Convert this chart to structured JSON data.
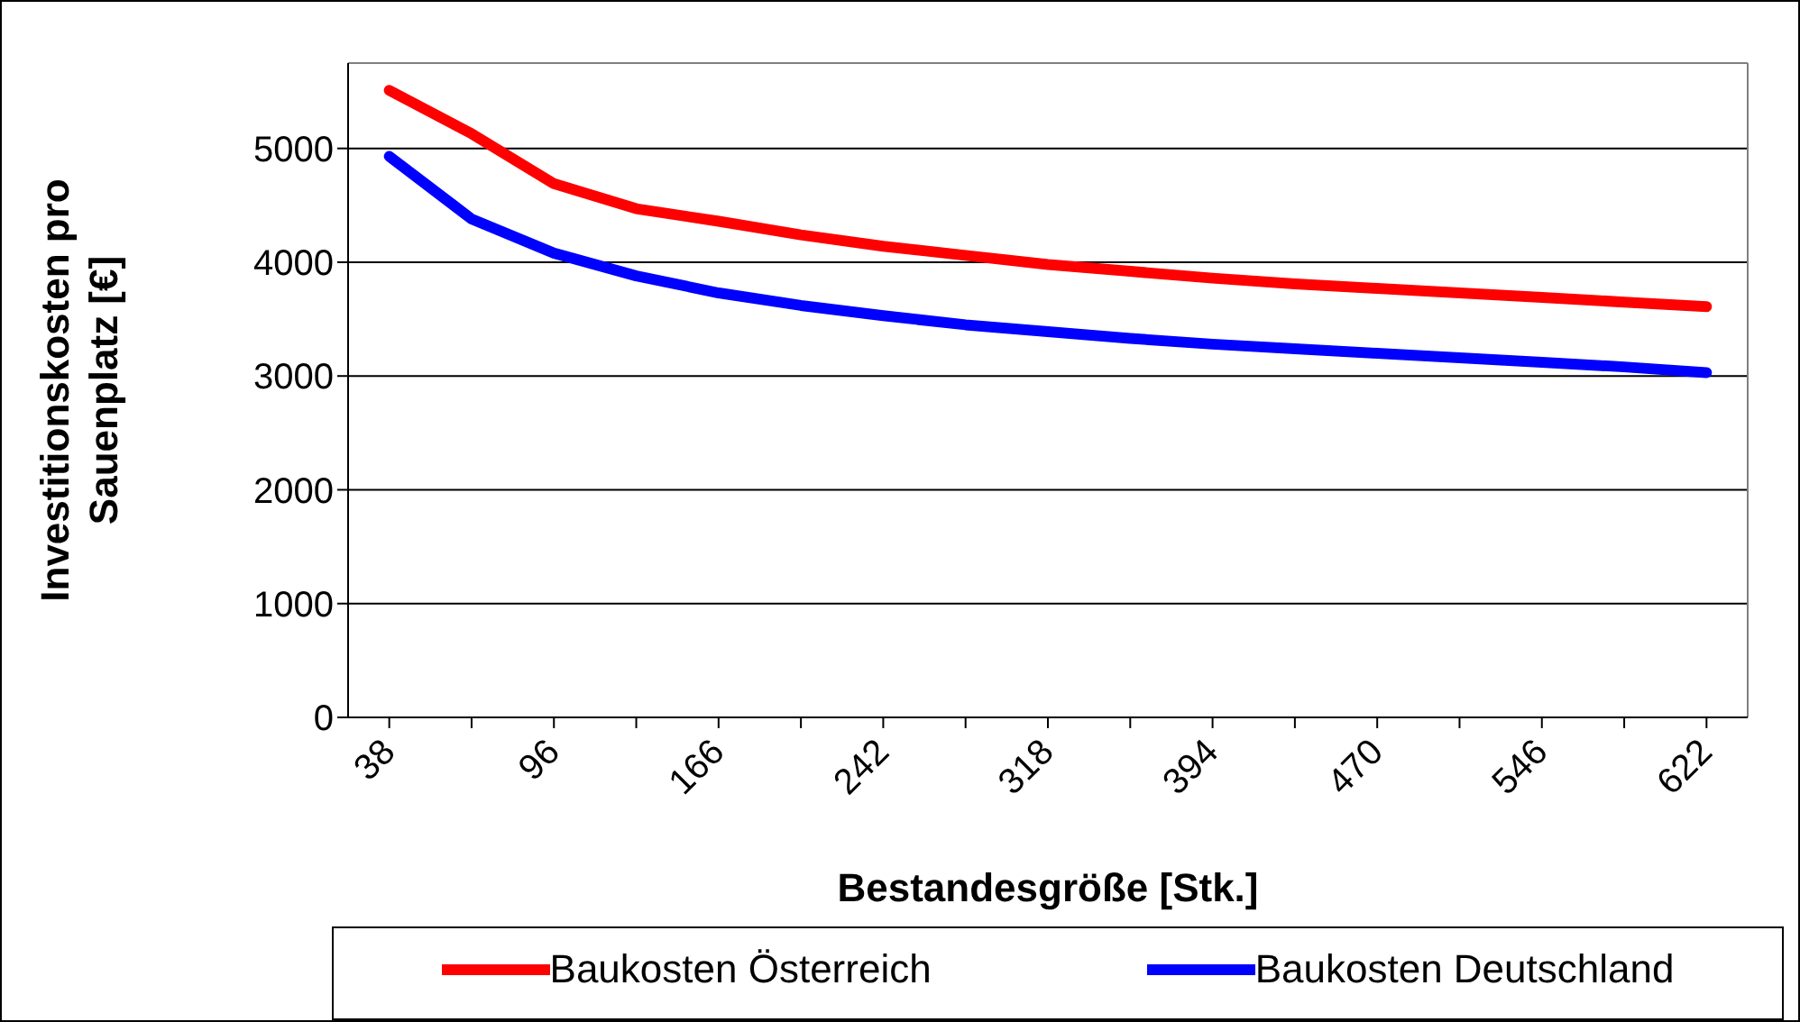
{
  "chart_data": {
    "type": "line",
    "xlabel": "Bestandesgröße [Stk.]",
    "ylabel": "Investitionskosten pro Sauenplatz [€]",
    "categories": [
      "38",
      null,
      "96",
      null,
      "166",
      null,
      "242",
      null,
      "318",
      null,
      "394",
      null,
      "470",
      null,
      "546",
      null,
      "622"
    ],
    "series": [
      {
        "name": "Baukosten Österreich",
        "color": "#ff0000",
        "values": [
          5510,
          5130,
          4690,
          4470,
          4360,
          4240,
          4140,
          4060,
          3980,
          3920,
          3860,
          3810,
          3770,
          3730,
          3690,
          3650,
          3610
        ]
      },
      {
        "name": "Baukosten Deutschland",
        "color": "#0000ff",
        "values": [
          4930,
          4380,
          4080,
          3880,
          3730,
          3620,
          3530,
          3450,
          3390,
          3330,
          3280,
          3240,
          3200,
          3160,
          3120,
          3080,
          3030
        ]
      }
    ],
    "ylim": [
      0,
      5750
    ],
    "yticks": [
      0,
      1000,
      2000,
      3000,
      4000,
      5000
    ],
    "grid": "y",
    "legend": "bottom",
    "marker": "none",
    "line_style": "solid"
  }
}
